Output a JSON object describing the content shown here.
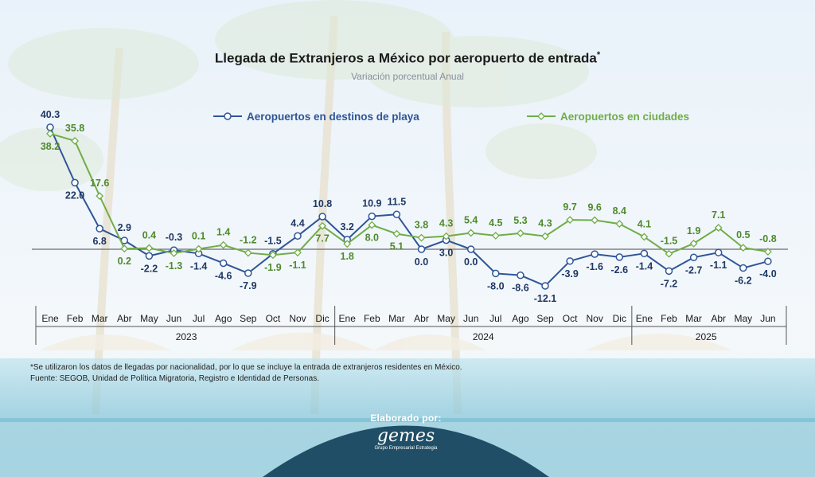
{
  "chart_data": {
    "type": "line",
    "title": "Llegada de Extranjeros a México por aeropuerto de entrada",
    "title_mark": "*",
    "subtitle": "Variación porcentual Anual",
    "x": [
      "Ene",
      "Feb",
      "Mar",
      "Abr",
      "May",
      "Jun",
      "Jul",
      "Ago",
      "Sep",
      "Oct",
      "Nov",
      "Dic",
      "Ene",
      "Feb",
      "Mar",
      "Abr",
      "May",
      "Jun",
      "Jul",
      "Ago",
      "Sep",
      "Oct",
      "Nov",
      "Dic",
      "Ene",
      "Feb",
      "Mar",
      "Abr",
      "May",
      "Jun"
    ],
    "years": [
      {
        "label": "2023",
        "start": 0,
        "end": 11
      },
      {
        "label": "2024",
        "start": 12,
        "end": 23
      },
      {
        "label": "2025",
        "start": 24,
        "end": 29
      }
    ],
    "series": [
      {
        "name": "Aeropuertos en destinos de playa",
        "color": "#2f5597",
        "marker": "circle",
        "values": [
          40.3,
          22.0,
          6.8,
          2.9,
          -2.2,
          -0.3,
          -1.4,
          -4.6,
          -7.9,
          -1.5,
          4.4,
          10.8,
          3.2,
          10.9,
          11.5,
          0.0,
          3.0,
          0.0,
          -8.0,
          -8.6,
          -12.1,
          -3.9,
          -1.6,
          -2.6,
          -1.4,
          -7.2,
          -2.7,
          -1.1,
          -6.2,
          -4.0
        ]
      },
      {
        "name": "Aeropuertos en ciudades",
        "color": "#70ad47",
        "marker": "diamond",
        "values": [
          38.2,
          35.8,
          17.6,
          0.2,
          0.4,
          -1.3,
          0.1,
          1.4,
          -1.2,
          -1.9,
          -1.1,
          7.7,
          1.8,
          8.0,
          5.1,
          3.8,
          4.3,
          5.4,
          4.5,
          5.3,
          4.3,
          9.7,
          9.6,
          8.4,
          4.1,
          -1.5,
          1.9,
          7.1,
          0.5,
          -0.8
        ]
      }
    ],
    "legend_placement": "top",
    "grid": false,
    "ylim": [
      -14,
      42
    ]
  },
  "notes": {
    "footnote": "*Se utilizaron los datos de llegadas por nacionalidad, por lo que se incluye la entrada de extranjeros residentes en México.",
    "source": "Fuente: SEGOB, Unidad de Política Migratoria, Registro e Identidad de Personas."
  },
  "credit": {
    "label": "Elaborado por:",
    "logo_text": "gemes",
    "logo_subtext": "Grupo Empresarial Estrategia"
  },
  "colors": {
    "sky": "#eef5fb",
    "sea": "#8ec9dc",
    "badge": "#1f4e66"
  }
}
